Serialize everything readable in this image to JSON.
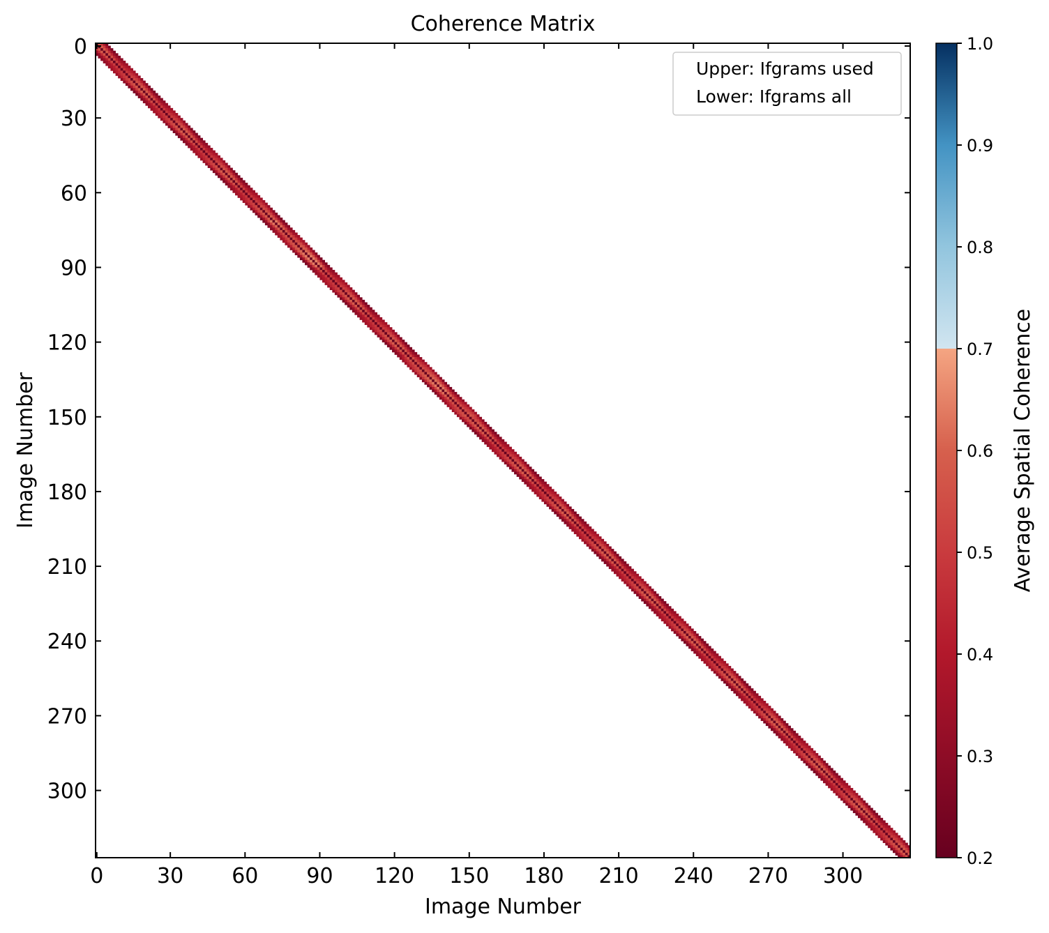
{
  "chart_data": {
    "type": "heatmap",
    "title": "Coherence Matrix",
    "xlabel": "Image Number",
    "ylabel": "Image Number",
    "n_images": 327,
    "xlim": [
      0,
      327
    ],
    "ylim": [
      327,
      0
    ],
    "x_ticks": [
      0,
      30,
      60,
      90,
      120,
      150,
      180,
      210,
      240,
      270,
      300
    ],
    "y_ticks": [
      0,
      30,
      60,
      90,
      120,
      150,
      180,
      210,
      240,
      270,
      300
    ],
    "band": {
      "pairs": "each image paired with the nearest neighbours (up to ~4 in each direction)",
      "max_offset": 4
    },
    "upper_triangle_label": "Upper: Ifgrams used",
    "lower_triangle_label": "Lower: Ifgrams all",
    "colorbar": {
      "label": "Average Spatial Coherence",
      "vmin": 0.2,
      "vmax": 1.0,
      "ticks": [
        0.2,
        0.3,
        0.4,
        0.5,
        0.6,
        0.7,
        0.8,
        0.9,
        1.0
      ],
      "tick_labels": [
        "0.2",
        "0.3",
        "0.4",
        "0.5",
        "0.6",
        "0.7",
        "0.8",
        "0.9",
        "1.0"
      ],
      "colormap": "RdBu (truncated)",
      "discontinuity_at": 0.7
    },
    "legend_position": "top-right",
    "grid": false
  }
}
